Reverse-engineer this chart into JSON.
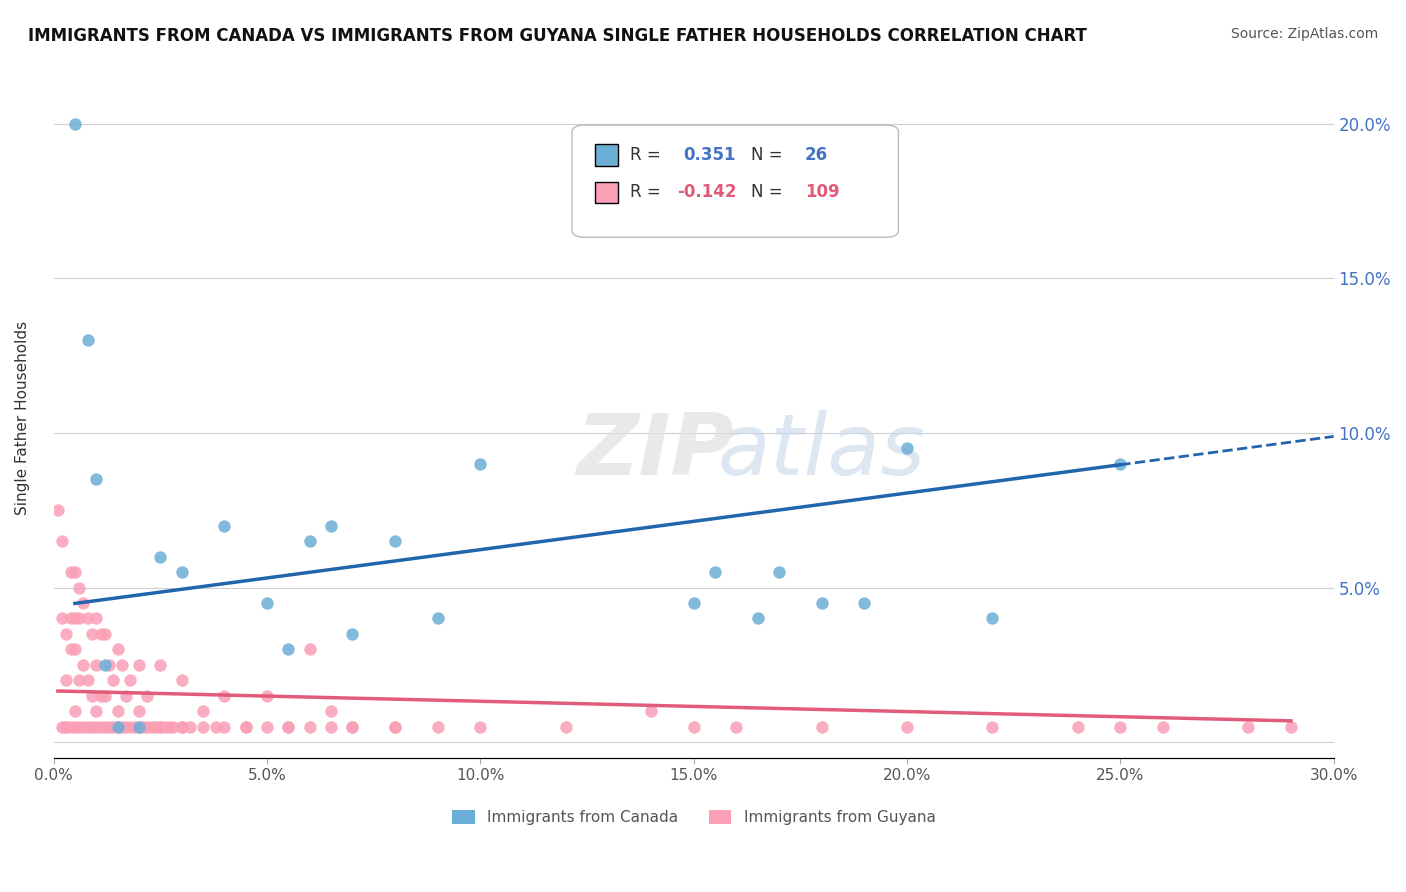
{
  "title": "IMMIGRANTS FROM CANADA VS IMMIGRANTS FROM GUYANA SINGLE FATHER HOUSEHOLDS CORRELATION CHART",
  "source": "Source: ZipAtlas.com",
  "ylabel": "Single Father Households",
  "ytick_vals": [
    0.0,
    0.05,
    0.1,
    0.15,
    0.2
  ],
  "ytick_labels": [
    "",
    "5.0%",
    "10.0%",
    "15.0%",
    "20.0%"
  ],
  "xlim": [
    0.0,
    0.3
  ],
  "ylim": [
    -0.005,
    0.215
  ],
  "canada_R": 0.351,
  "canada_N": 26,
  "guyana_R": -0.142,
  "guyana_N": 109,
  "canada_color": "#6baed6",
  "guyana_color": "#fa9fb5",
  "canada_line_color": "#2166ac",
  "guyana_line_color": "#e05c7a",
  "canada_points_x": [
    0.005,
    0.008,
    0.01,
    0.012,
    0.015,
    0.02,
    0.025,
    0.03,
    0.04,
    0.05,
    0.055,
    0.06,
    0.065,
    0.07,
    0.08,
    0.09,
    0.1,
    0.15,
    0.155,
    0.165,
    0.17,
    0.18,
    0.19,
    0.2,
    0.22,
    0.25
  ],
  "canada_points_y": [
    0.2,
    0.13,
    0.085,
    0.025,
    0.005,
    0.005,
    0.06,
    0.055,
    0.07,
    0.045,
    0.03,
    0.065,
    0.07,
    0.035,
    0.065,
    0.04,
    0.09,
    0.045,
    0.055,
    0.04,
    0.055,
    0.045,
    0.045,
    0.095,
    0.04,
    0.09
  ],
  "guyana_points_x": [
    0.001,
    0.002,
    0.002,
    0.003,
    0.003,
    0.003,
    0.004,
    0.004,
    0.004,
    0.005,
    0.005,
    0.005,
    0.005,
    0.006,
    0.006,
    0.006,
    0.007,
    0.007,
    0.008,
    0.008,
    0.009,
    0.009,
    0.01,
    0.01,
    0.01,
    0.011,
    0.011,
    0.012,
    0.012,
    0.013,
    0.014,
    0.015,
    0.015,
    0.016,
    0.017,
    0.018,
    0.02,
    0.02,
    0.022,
    0.025,
    0.025,
    0.03,
    0.03,
    0.035,
    0.04,
    0.045,
    0.05,
    0.055,
    0.06,
    0.065,
    0.07,
    0.08,
    0.09,
    0.1,
    0.12,
    0.14,
    0.15,
    0.16,
    0.18,
    0.2,
    0.22,
    0.24,
    0.25,
    0.26,
    0.28,
    0.29,
    0.002,
    0.003,
    0.004,
    0.005,
    0.006,
    0.007,
    0.008,
    0.009,
    0.01,
    0.011,
    0.012,
    0.013,
    0.014,
    0.015,
    0.016,
    0.017,
    0.018,
    0.019,
    0.02,
    0.021,
    0.022,
    0.023,
    0.024,
    0.025,
    0.026,
    0.027,
    0.028,
    0.03,
    0.032,
    0.035,
    0.038,
    0.04,
    0.045,
    0.05,
    0.055,
    0.06,
    0.065,
    0.07,
    0.08
  ],
  "guyana_points_y": [
    0.075,
    0.065,
    0.04,
    0.035,
    0.02,
    0.005,
    0.055,
    0.04,
    0.03,
    0.055,
    0.04,
    0.03,
    0.01,
    0.05,
    0.04,
    0.02,
    0.045,
    0.025,
    0.04,
    0.02,
    0.035,
    0.015,
    0.04,
    0.025,
    0.01,
    0.035,
    0.015,
    0.035,
    0.015,
    0.025,
    0.02,
    0.03,
    0.01,
    0.025,
    0.015,
    0.02,
    0.025,
    0.01,
    0.015,
    0.025,
    0.005,
    0.02,
    0.005,
    0.01,
    0.015,
    0.005,
    0.015,
    0.005,
    0.03,
    0.01,
    0.005,
    0.005,
    0.005,
    0.005,
    0.005,
    0.01,
    0.005,
    0.005,
    0.005,
    0.005,
    0.005,
    0.005,
    0.005,
    0.005,
    0.005,
    0.005,
    0.005,
    0.005,
    0.005,
    0.005,
    0.005,
    0.005,
    0.005,
    0.005,
    0.005,
    0.005,
    0.005,
    0.005,
    0.005,
    0.005,
    0.005,
    0.005,
    0.005,
    0.005,
    0.005,
    0.005,
    0.005,
    0.005,
    0.005,
    0.005,
    0.005,
    0.005,
    0.005,
    0.005,
    0.005,
    0.005,
    0.005,
    0.005,
    0.005,
    0.005,
    0.005,
    0.005,
    0.005,
    0.005,
    0.005
  ]
}
